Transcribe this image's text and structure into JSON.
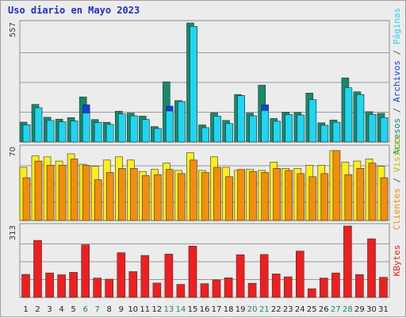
{
  "chart_data": {
    "title": "Uso diario en Mayo 2023",
    "x": [
      "1",
      "2",
      "3",
      "4",
      "5",
      "6",
      "7",
      "8",
      "9",
      "10",
      "11",
      "12",
      "13",
      "14",
      "15",
      "16",
      "17",
      "18",
      "19",
      "20",
      "21",
      "22",
      "23",
      "24",
      "25",
      "26",
      "27",
      "28",
      "29",
      "30",
      "31"
    ],
    "weekend_days": [
      6,
      7,
      13,
      14,
      20,
      21,
      27,
      28
    ],
    "panels": [
      {
        "type": "bar",
        "ymax_label": "557",
        "ylim": [
          0,
          557
        ],
        "grid": true,
        "series": [
          {
            "name": "Accesos",
            "color": "#168a6b",
            "values": [
              93,
              176,
              116,
              107,
              114,
              211,
              105,
              92,
              144,
              135,
              121,
              72,
              282,
              194,
              557,
              80,
              136,
              101,
              222,
              135,
              266,
              110,
              140,
              138,
              229,
              90,
              103,
              300,
              235,
              142,
              134
            ]
          },
          {
            "name": "Páginas",
            "color": "#1cd7f5",
            "values": [
              80,
              160,
              101,
              94,
              98,
              135,
              91,
              82,
              131,
              122,
              105,
              63,
              145,
              189,
              541,
              67,
              121,
              86,
              217,
              122,
              147,
              97,
              128,
              126,
              198,
              78,
              92,
              254,
              222,
              129,
              114
            ]
          },
          {
            "name": "Archivos",
            "color": "#1240dc",
            "values": [
              80,
              160,
              101,
              94,
              98,
              174,
              91,
              82,
              131,
              122,
              105,
              63,
              168,
              189,
              541,
              67,
              121,
              86,
              217,
              122,
              174,
              97,
              128,
              126,
              198,
              78,
              92,
              214,
              222,
              129,
              114
            ]
          }
        ],
        "legend_parts": [
          {
            "text": "Accesos",
            "color": "#168a6b"
          },
          {
            "text": " / ",
            "color": "#555555"
          },
          {
            "text": "Archivos",
            "color": "#1240dc"
          },
          {
            "text": " / ",
            "color": "#555555"
          },
          {
            "text": "Páginas",
            "color": "#1cd7f5"
          }
        ]
      },
      {
        "type": "bar",
        "ymax_label": "70",
        "ylim": [
          0,
          70
        ],
        "grid": true,
        "series": [
          {
            "name": "Visitas",
            "color": "#ffee17",
            "values": [
              51,
              62,
              61,
              57,
              64,
              54,
              52,
              58,
              61,
              58,
              47,
              49,
              55,
              48,
              65,
              48,
              61,
              51,
              48,
              49,
              48,
              56,
              50,
              50,
              53,
              53,
              67,
              56,
              57,
              59,
              52
            ]
          },
          {
            "name": "Clientes",
            "color": "#f28e0c",
            "values": [
              41,
              57,
              53,
              53,
              59,
              53,
              39,
              46,
              50,
              50,
              43,
              44,
              49,
              45,
              58,
              46,
              51,
              42,
              49,
              47,
              46,
              50,
              48,
              45,
              42,
              45,
              67,
              44,
              50,
              55,
              41
            ]
          }
        ],
        "legend_parts": [
          {
            "text": "Clientes",
            "color": "#f28e0c"
          },
          {
            "text": " / ",
            "color": "#555555"
          },
          {
            "text": "Visitas",
            "color": "#c9c200"
          }
        ]
      },
      {
        "type": "bar",
        "ymax_label": "313",
        "ylim": [
          0,
          313
        ],
        "grid": true,
        "series": [
          {
            "name": "KBytes",
            "color": "#ef1f1f",
            "values": [
              101,
              250,
              107,
              99,
              110,
              231,
              85,
              80,
              196,
              113,
              184,
              63,
              190,
              57,
              225,
              60,
              77,
              86,
              187,
              62,
              188,
              103,
              90,
              203,
              38,
              85,
              107,
              313,
              100,
              257,
              88
            ]
          }
        ],
        "legend_parts": [
          {
            "text": "KBytes",
            "color": "#ef1f1f"
          }
        ]
      }
    ]
  }
}
